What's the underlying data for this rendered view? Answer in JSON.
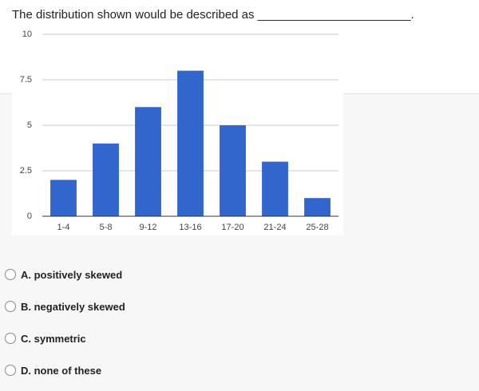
{
  "question": "The distribution shown would be described as _______________________.",
  "chart_data": {
    "type": "bar",
    "categories": [
      "1-4",
      "5-8",
      "9-12",
      "13-16",
      "17-20",
      "21-24",
      "25-28"
    ],
    "values": [
      2,
      4,
      6,
      8,
      5,
      3,
      1
    ],
    "color": "#3366cc",
    "ylim": [
      0,
      10
    ],
    "yticks": [
      0,
      2.5,
      5,
      7.5,
      10
    ],
    "grid": true
  },
  "options": [
    "A. positively skewed",
    "B. negatively skewed",
    "C. symmetric",
    "D. none of these"
  ]
}
